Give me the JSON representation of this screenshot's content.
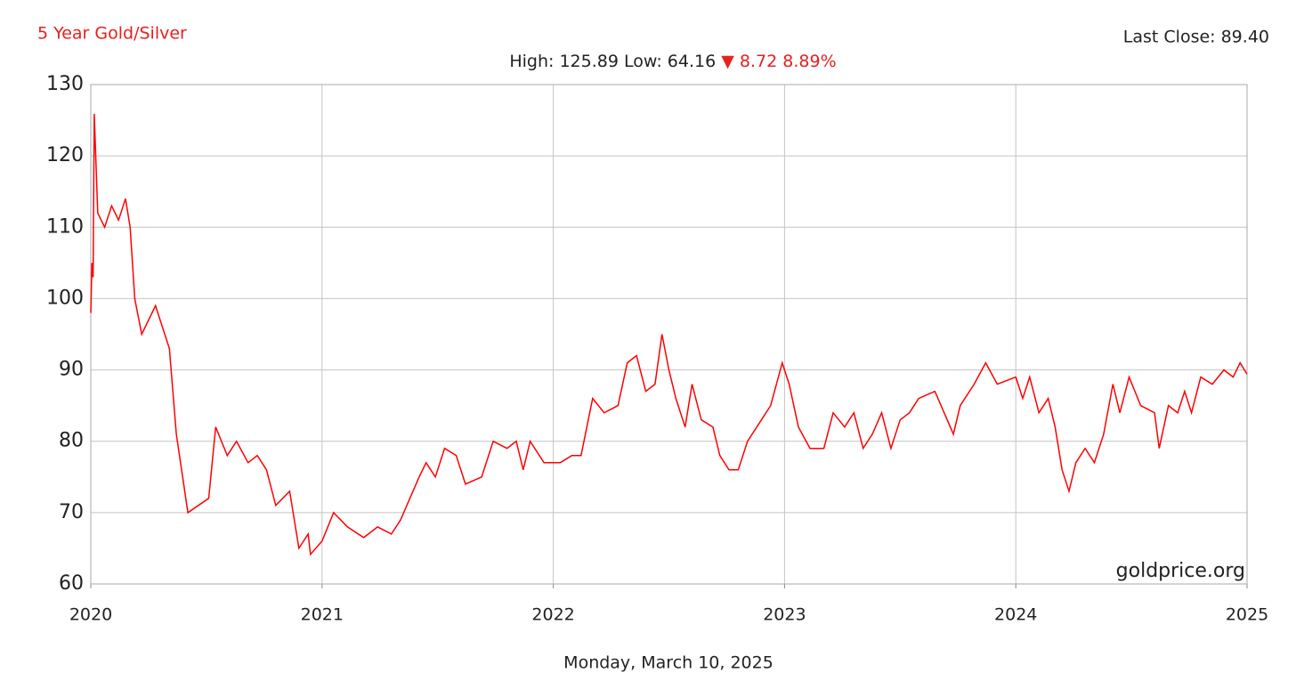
{
  "chart_data": {
    "type": "line",
    "title": "5 Year Gold/Silver",
    "last_close": "Last Close: 89.40",
    "stats": "High: 125.89 Low: 64.16",
    "change_marker": "▼",
    "change": "8.72 8.89%",
    "watermark": "goldprice.org",
    "date": "Monday, March 10, 2025",
    "color": "#ff0000",
    "grid": true,
    "xlim": [
      2020,
      2025
    ],
    "ylim": [
      60,
      130
    ],
    "xticks": [
      2020,
      2021,
      2022,
      2023,
      2024,
      2025
    ],
    "yticks": [
      60,
      70,
      80,
      90,
      100,
      110,
      120,
      130
    ],
    "x": [
      2020.0,
      2020.005,
      2020.01,
      2020.015,
      2020.03,
      2020.06,
      2020.09,
      2020.12,
      2020.15,
      2020.17,
      2020.19,
      2020.22,
      2020.28,
      2020.34,
      2020.37,
      2020.42,
      2020.51,
      2020.54,
      2020.59,
      2020.63,
      2020.68,
      2020.72,
      2020.76,
      2020.8,
      2020.86,
      2020.9,
      2020.94,
      2020.95,
      2021.0,
      2021.05,
      2021.11,
      2021.18,
      2021.24,
      2021.3,
      2021.34,
      2021.38,
      2021.42,
      2021.45,
      2021.49,
      2021.53,
      2021.58,
      2021.62,
      2021.69,
      2021.74,
      2021.8,
      2021.84,
      2021.87,
      2021.9,
      2021.96,
      2022.03,
      2022.08,
      2022.12,
      2022.17,
      2022.22,
      2022.28,
      2022.32,
      2022.36,
      2022.4,
      2022.44,
      2022.47,
      2022.5,
      2022.53,
      2022.57,
      2022.6,
      2022.64,
      2022.69,
      2022.72,
      2022.76,
      2022.8,
      2022.84,
      2022.9,
      2022.94,
      2022.99,
      2023.02,
      2023.06,
      2023.11,
      2023.17,
      2023.21,
      2023.26,
      2023.3,
      2023.34,
      2023.38,
      2023.42,
      2023.46,
      2023.5,
      2023.54,
      2023.58,
      2023.65,
      2023.73,
      2023.76,
      2023.82,
      2023.87,
      2023.92,
      2024.0,
      2024.03,
      2024.06,
      2024.1,
      2024.14,
      2024.17,
      2024.2,
      2024.23,
      2024.26,
      2024.3,
      2024.34,
      2024.38,
      2024.42,
      2024.45,
      2024.49,
      2024.54,
      2024.6,
      2024.62,
      2024.66,
      2024.7,
      2024.73,
      2024.76,
      2024.8,
      2024.85,
      2024.9,
      2024.94,
      2024.97,
      2025.0
    ],
    "values": [
      98,
      105,
      103,
      125.89,
      112,
      110,
      113,
      111,
      114,
      110,
      100,
      95,
      99,
      93,
      81,
      70,
      72,
      82,
      78,
      80,
      77,
      78,
      76,
      71,
      73,
      65,
      67,
      64.16,
      66,
      70,
      68,
      66.5,
      68,
      67,
      69,
      72,
      75,
      77,
      75,
      79,
      78,
      74,
      75,
      80,
      79,
      80,
      76,
      80,
      77,
      77,
      78,
      78,
      86,
      84,
      85,
      91,
      92,
      87,
      88,
      95,
      90,
      86,
      82,
      88,
      83,
      82,
      78,
      76,
      76,
      80,
      83,
      85,
      91,
      88,
      82,
      79,
      79,
      84,
      82,
      84,
      79,
      81,
      84,
      79,
      83,
      84,
      86,
      87,
      81,
      85,
      88,
      91,
      88,
      89,
      86,
      89,
      84,
      86,
      82,
      76,
      73,
      77,
      79,
      77,
      81,
      88,
      84,
      89,
      85,
      84,
      79,
      85,
      84,
      87,
      84,
      89,
      88,
      90,
      89,
      91,
      89.4
    ]
  }
}
